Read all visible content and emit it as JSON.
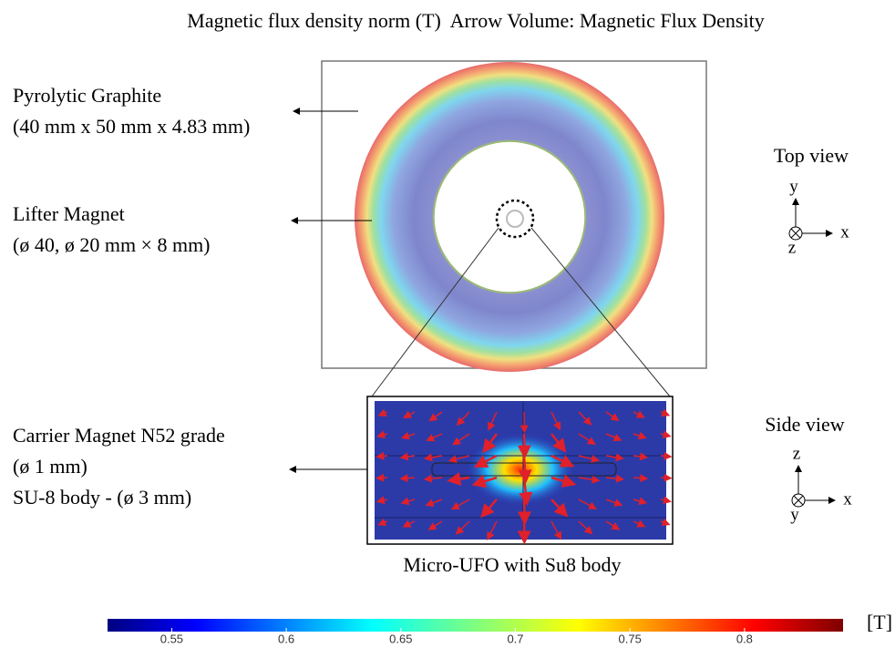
{
  "title": "Magnetic flux density norm (T)  Arrow Volume: Magnetic Flux Density",
  "labels": [
    {
      "lines": [
        "Pyrolytic Graphite",
        "(40 mm x 50 mm x 4.83 mm)"
      ]
    },
    {
      "lines": [
        "Lifter Magnet",
        "(ø 40, ø 20 mm × 8 mm)"
      ]
    },
    {
      "lines": [
        "Carrier Magnet N52 grade",
        "(ø 1 mm)",
        "SU-8 body - (ø 3 mm)"
      ]
    }
  ],
  "inset_caption": "Micro-UFO with Su8 body",
  "views": [
    {
      "title": "Top view",
      "axis_up": "y",
      "axis_right": "x",
      "axis_out": "z"
    },
    {
      "title": "Side view",
      "axis_up": "z",
      "axis_right": "x",
      "axis_out": "y"
    }
  ],
  "colorbar": {
    "range": [
      0.522,
      0.843
    ],
    "ticks": [
      0.55,
      0.6,
      0.65,
      0.7,
      0.75,
      0.8
    ],
    "unit": "[T]"
  }
}
